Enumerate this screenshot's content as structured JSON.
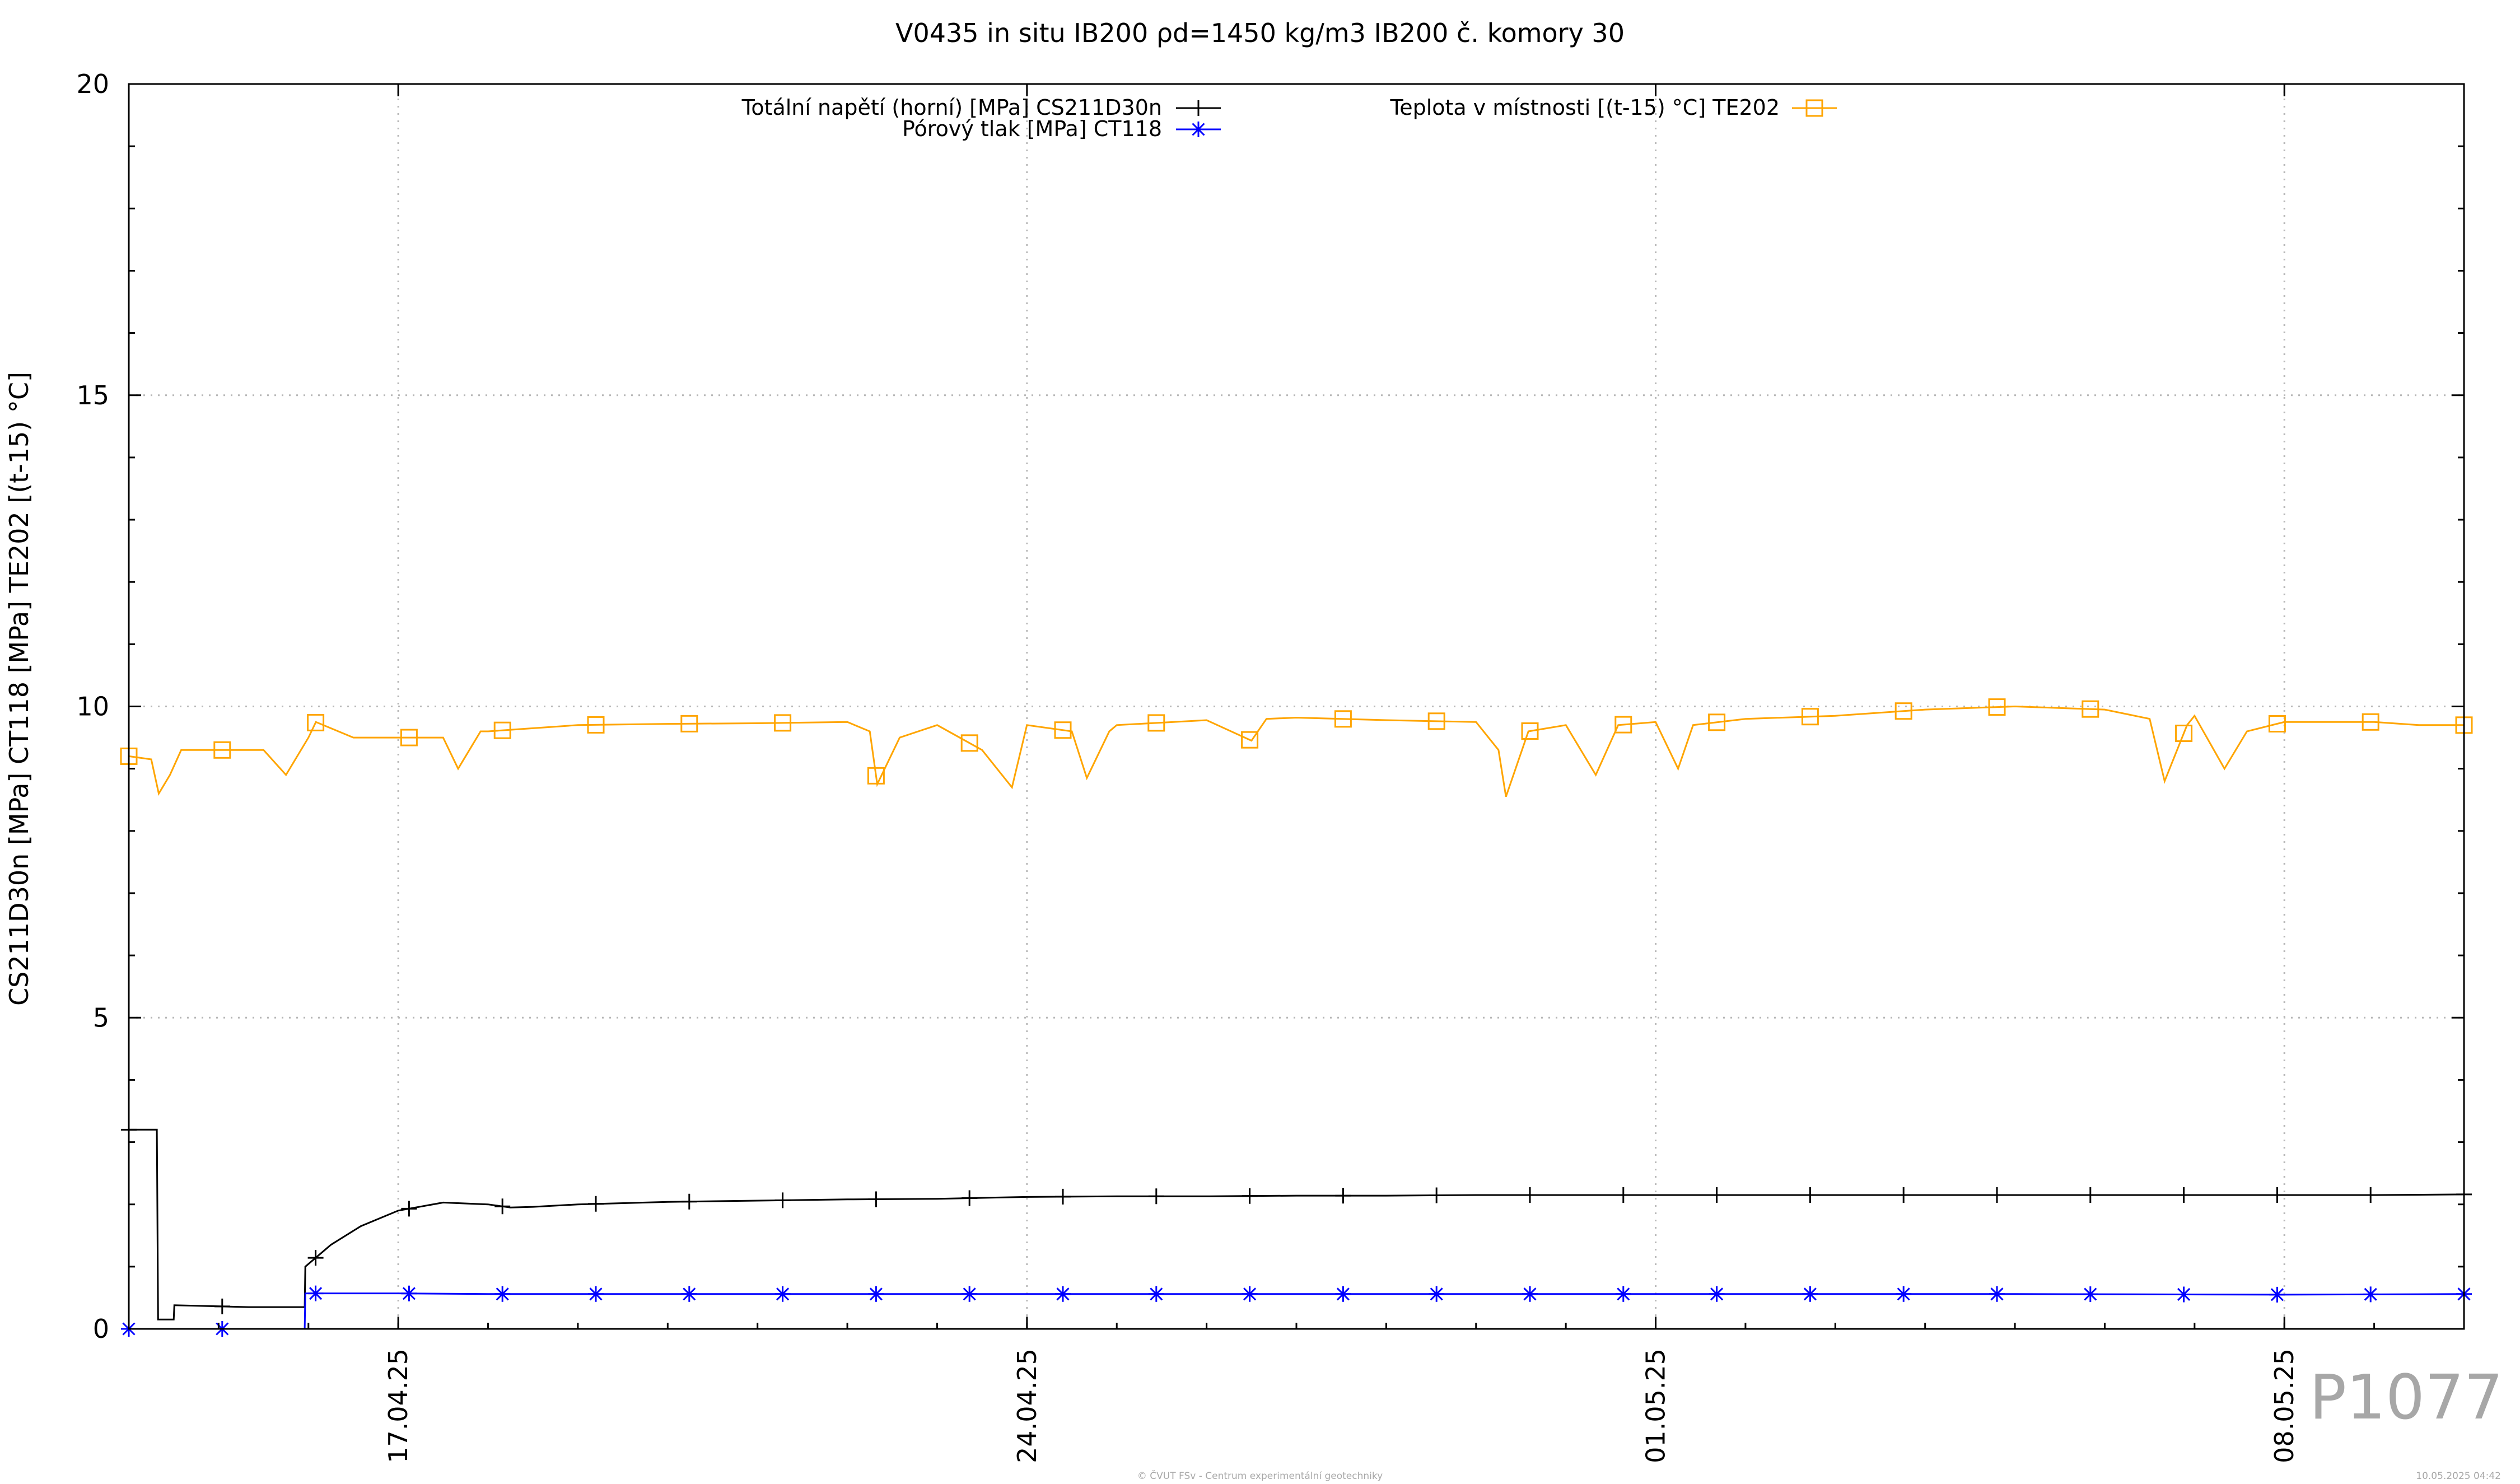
{
  "chart_data": {
    "type": "line",
    "title": "V0435 in situ IB200 ρd=1450 kg/m3 IB200 č. komory 30",
    "ylabel": "CS211D30n [MPa] CT118 [MPa] TE202 [(t-15) °C]",
    "xlabel": "",
    "ylim": [
      0,
      20
    ],
    "yticks": [
      0,
      5,
      10,
      15,
      20
    ],
    "xlim": [
      "2025-04-14T00:00",
      "2025-05-10T00:00"
    ],
    "xticks": [
      "17.04.25",
      "24.04.25",
      "01.05.25",
      "08.05.25"
    ],
    "xtick_dates": [
      "2025-04-17",
      "2025-04-24",
      "2025-05-01",
      "2025-05-08"
    ],
    "grid": true,
    "legend_position": "top",
    "series": [
      {
        "name": "Totální napětí (horní) [MPa] CS211D30n",
        "color": "#000000",
        "marker": "plus",
        "points": [
          [
            "2025-04-14T00:00",
            3.2
          ],
          [
            "2025-04-14T07:30",
            3.2
          ],
          [
            "2025-04-14T07:50",
            0.15
          ],
          [
            "2025-04-14T12:00",
            0.15
          ],
          [
            "2025-04-14T12:10",
            0.38
          ],
          [
            "2025-04-15T08:00",
            0.35
          ],
          [
            "2025-04-15T23:00",
            0.35
          ],
          [
            "2025-04-15T23:10",
            1.0
          ],
          [
            "2025-04-16T06:00",
            1.35
          ],
          [
            "2025-04-16T14:00",
            1.65
          ],
          [
            "2025-04-17T00:00",
            1.9
          ],
          [
            "2025-04-17T12:00",
            2.03
          ],
          [
            "2025-04-18T00:00",
            2.0
          ],
          [
            "2025-04-18T06:00",
            1.95
          ],
          [
            "2025-04-18T12:00",
            1.96
          ],
          [
            "2025-04-19T00:00",
            2.0
          ],
          [
            "2025-04-20T00:00",
            2.04
          ],
          [
            "2025-04-21T00:00",
            2.06
          ],
          [
            "2025-04-22T00:00",
            2.08
          ],
          [
            "2025-04-23T00:00",
            2.09
          ],
          [
            "2025-04-24T00:00",
            2.12
          ],
          [
            "2025-04-25T00:00",
            2.13
          ],
          [
            "2025-04-26T00:00",
            2.13
          ],
          [
            "2025-04-27T00:00",
            2.14
          ],
          [
            "2025-04-28T00:00",
            2.14
          ],
          [
            "2025-04-29T00:00",
            2.15
          ],
          [
            "2025-04-30T00:00",
            2.15
          ],
          [
            "2025-05-01T00:00",
            2.15
          ],
          [
            "2025-05-02T00:00",
            2.15
          ],
          [
            "2025-05-03T00:00",
            2.15
          ],
          [
            "2025-05-04T00:00",
            2.15
          ],
          [
            "2025-05-05T00:00",
            2.15
          ],
          [
            "2025-05-06T00:00",
            2.15
          ],
          [
            "2025-05-07T00:00",
            2.15
          ],
          [
            "2025-05-08T00:00",
            2.15
          ],
          [
            "2025-05-09T00:00",
            2.15
          ],
          [
            "2025-05-10T00:00",
            2.16
          ]
        ]
      },
      {
        "name": "Pórový tlak [MPa] CT118",
        "color": "#0000ff",
        "marker": "star",
        "points": [
          [
            "2025-04-14T00:00",
            0.0
          ],
          [
            "2025-04-15T23:00",
            0.0
          ],
          [
            "2025-04-15T23:10",
            0.57
          ],
          [
            "2025-04-17T00:00",
            0.57
          ],
          [
            "2025-04-18T00:00",
            0.56
          ],
          [
            "2025-04-20T00:00",
            0.56
          ],
          [
            "2025-04-24T00:00",
            0.56
          ],
          [
            "2025-04-28T00:00",
            0.56
          ],
          [
            "2025-05-01T00:00",
            0.56
          ],
          [
            "2025-05-05T00:00",
            0.56
          ],
          [
            "2025-05-08T00:00",
            0.55
          ],
          [
            "2025-05-10T00:00",
            0.56
          ]
        ]
      },
      {
        "name": "Teplota v místnosti [(t-15) °C] TE202",
        "color": "#ffa500",
        "marker": "square",
        "points": [
          [
            "2025-04-14T00:00",
            9.2
          ],
          [
            "2025-04-14T06:00",
            9.15
          ],
          [
            "2025-04-14T08:00",
            8.6
          ],
          [
            "2025-04-14T11:00",
            8.9
          ],
          [
            "2025-04-14T14:00",
            9.3
          ],
          [
            "2025-04-15T00:00",
            9.3
          ],
          [
            "2025-04-15T12:00",
            9.3
          ],
          [
            "2025-04-15T18:00",
            8.9
          ],
          [
            "2025-04-16T00:00",
            9.5
          ],
          [
            "2025-04-16T02:00",
            9.75
          ],
          [
            "2025-04-16T12:00",
            9.5
          ],
          [
            "2025-04-17T00:00",
            9.5
          ],
          [
            "2025-04-17T12:00",
            9.5
          ],
          [
            "2025-04-17T16:00",
            9.0
          ],
          [
            "2025-04-17T22:00",
            9.6
          ],
          [
            "2025-04-18T00:00",
            9.6
          ],
          [
            "2025-04-19T00:00",
            9.7
          ],
          [
            "2025-04-20T00:00",
            9.72
          ],
          [
            "2025-04-21T00:00",
            9.73
          ],
          [
            "2025-04-22T00:00",
            9.75
          ],
          [
            "2025-04-22T06:00",
            9.6
          ],
          [
            "2025-04-22T08:00",
            8.75
          ],
          [
            "2025-04-22T14:00",
            9.5
          ],
          [
            "2025-04-23T00:00",
            9.7
          ],
          [
            "2025-04-23T12:00",
            9.3
          ],
          [
            "2025-04-23T16:00",
            9.0
          ],
          [
            "2025-04-23T20:00",
            8.7
          ],
          [
            "2025-04-24T00:00",
            9.7
          ],
          [
            "2025-04-24T12:00",
            9.6
          ],
          [
            "2025-04-24T16:00",
            8.85
          ],
          [
            "2025-04-24T22:00",
            9.6
          ],
          [
            "2025-04-25T00:00",
            9.7
          ],
          [
            "2025-04-26T00:00",
            9.78
          ],
          [
            "2025-04-26T12:00",
            9.45
          ],
          [
            "2025-04-26T16:00",
            9.8
          ],
          [
            "2025-04-27T00:00",
            9.82
          ],
          [
            "2025-04-28T00:00",
            9.78
          ],
          [
            "2025-04-29T00:00",
            9.75
          ],
          [
            "2025-04-29T06:00",
            9.3
          ],
          [
            "2025-04-29T08:00",
            8.55
          ],
          [
            "2025-04-29T14:00",
            9.6
          ],
          [
            "2025-04-30T00:00",
            9.7
          ],
          [
            "2025-04-30T08:00",
            8.9
          ],
          [
            "2025-04-30T14:00",
            9.7
          ],
          [
            "2025-05-01T00:00",
            9.75
          ],
          [
            "2025-05-01T06:00",
            9.0
          ],
          [
            "2025-05-01T10:00",
            9.7
          ],
          [
            "2025-05-02T00:00",
            9.8
          ],
          [
            "2025-05-03T00:00",
            9.85
          ],
          [
            "2025-05-04T00:00",
            9.95
          ],
          [
            "2025-05-05T00:00",
            10.0
          ],
          [
            "2025-05-06T00:00",
            9.95
          ],
          [
            "2025-05-06T12:00",
            9.8
          ],
          [
            "2025-05-06T16:00",
            8.8
          ],
          [
            "2025-05-06T22:00",
            9.7
          ],
          [
            "2025-05-07T00:00",
            9.85
          ],
          [
            "2025-05-07T08:00",
            9.0
          ],
          [
            "2025-05-07T14:00",
            9.6
          ],
          [
            "2025-05-08T00:00",
            9.75
          ],
          [
            "2025-05-09T00:00",
            9.75
          ],
          [
            "2025-05-09T12:00",
            9.7
          ],
          [
            "2025-05-10T00:00",
            9.7
          ]
        ]
      }
    ]
  },
  "corner_label": "P1077",
  "footer": {
    "copyright": "© ČVUT FSv - Centrum experimentální geotechniky",
    "timestamp": "10.05.2025 04:42"
  }
}
